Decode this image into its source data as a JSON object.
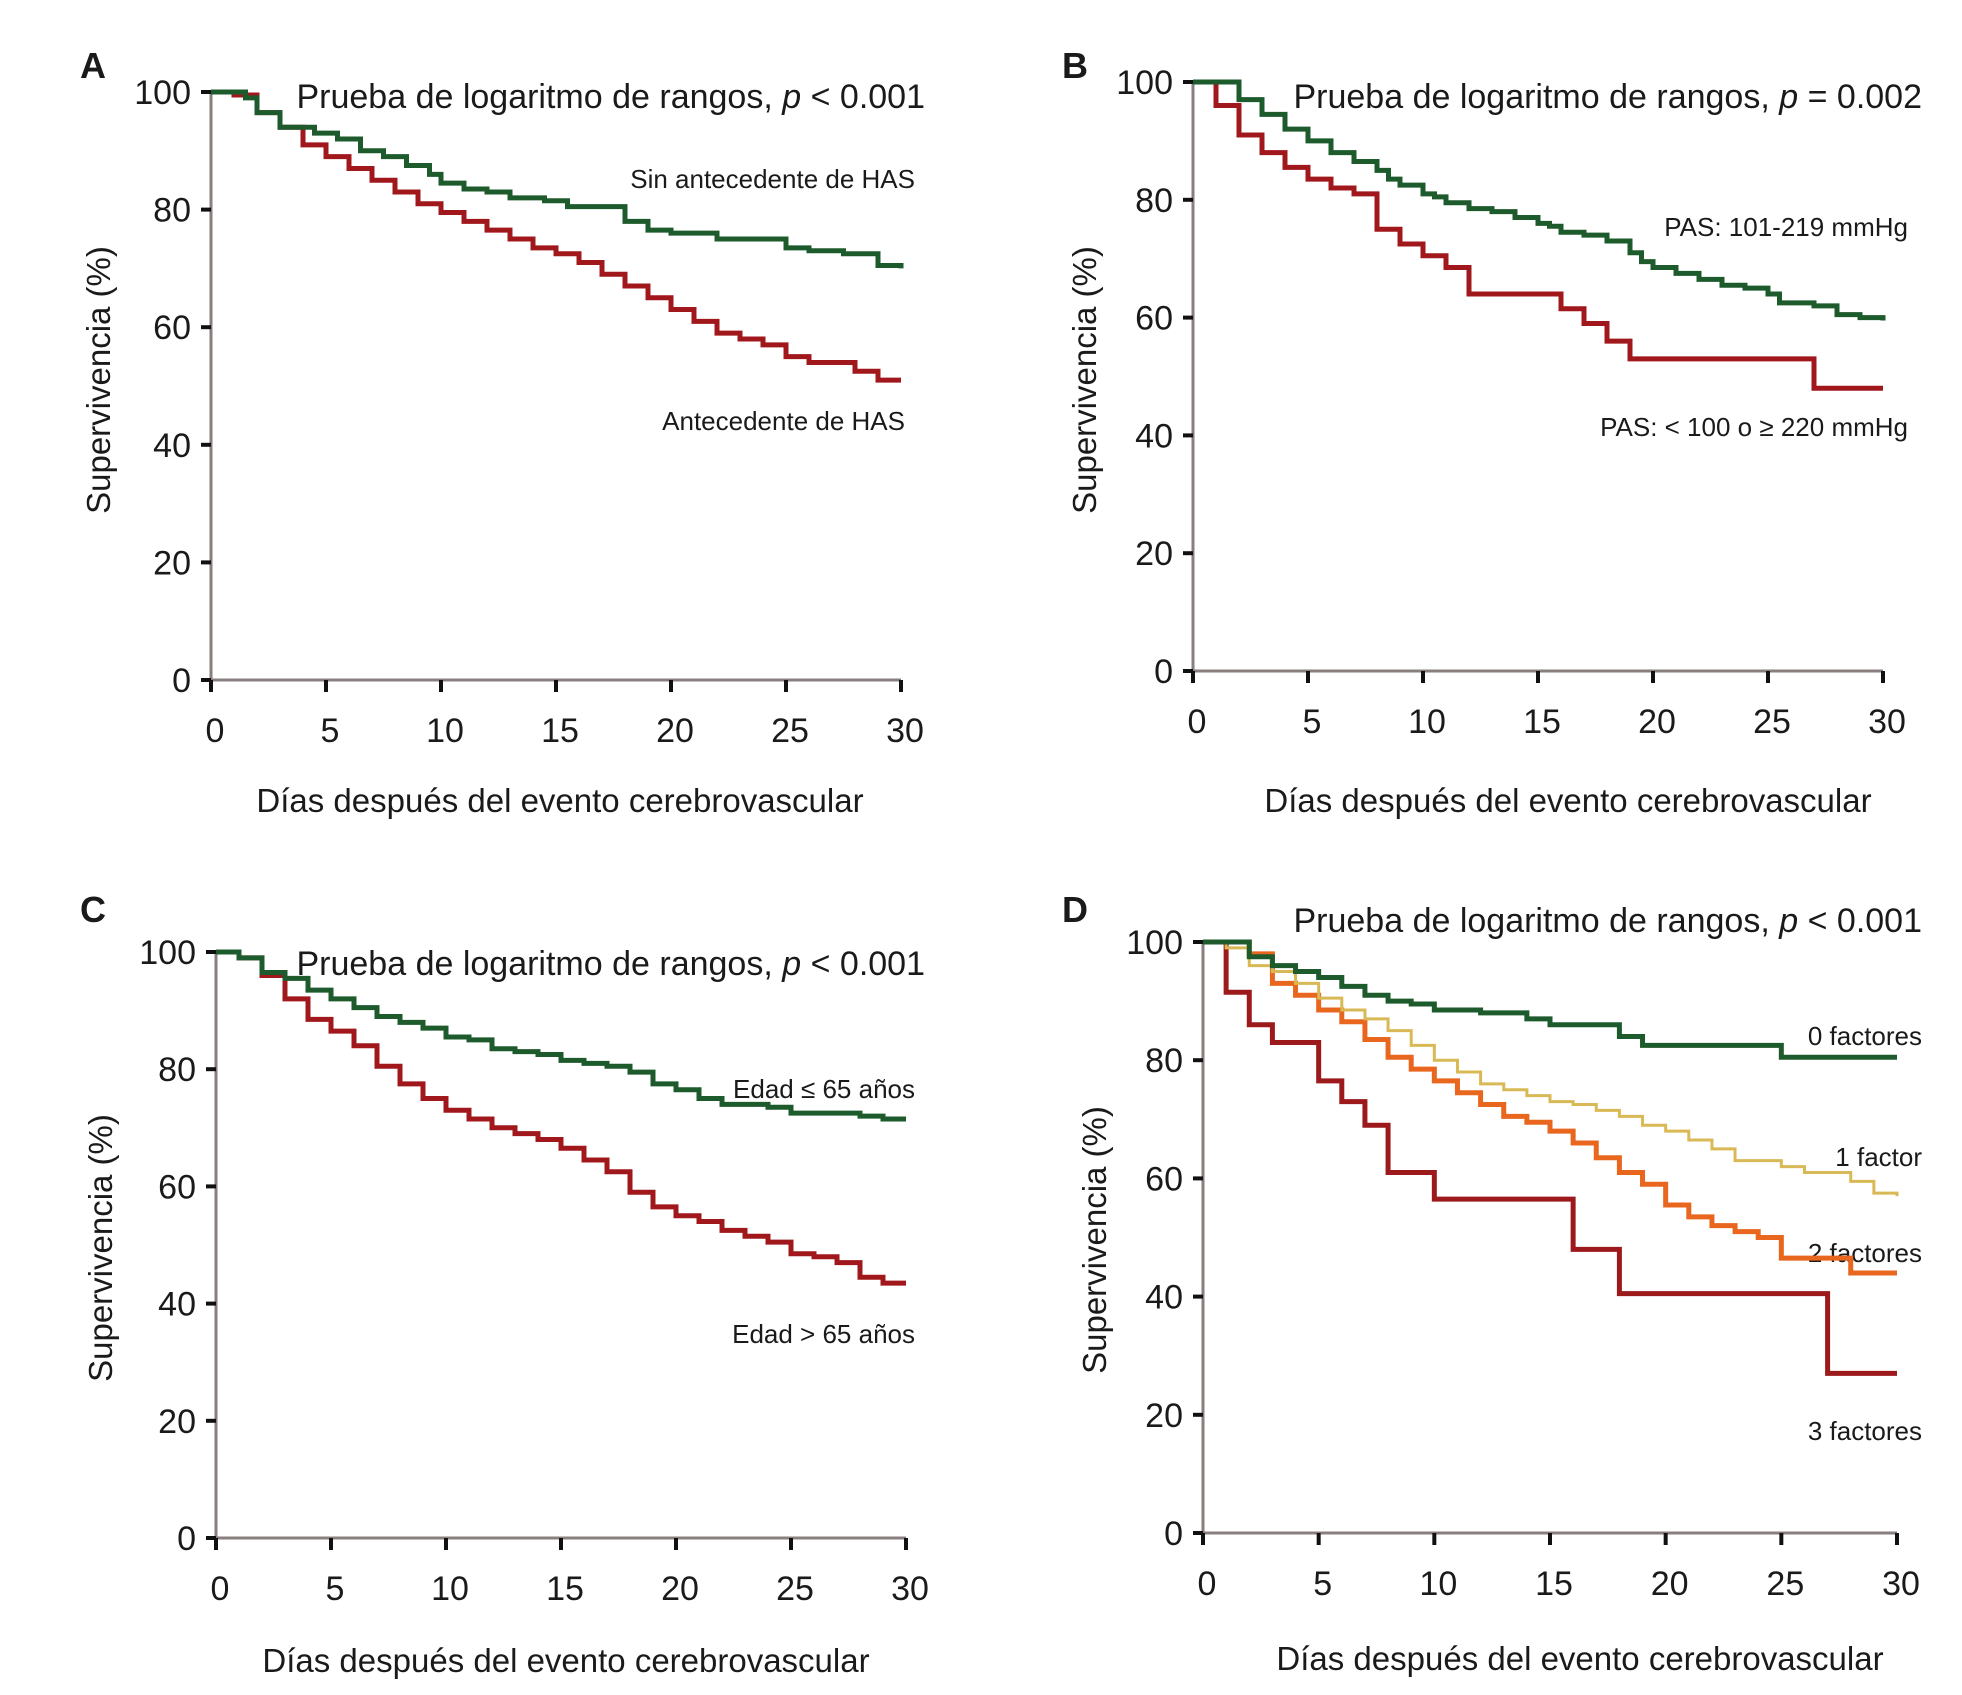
{
  "chart_data": [
    {
      "panel": "A",
      "type": "line",
      "step": true,
      "title": "Prueba de logaritmo de rangos, p < 0.001",
      "title_parts": {
        "prefix": "Prueba de logaritmo de rangos, ",
        "p": "p",
        "suffix": " < 0.001"
      },
      "xlabel": "Días después del evento cerebrovascular",
      "ylabel": "Supervivencia (%)",
      "xlim": [
        0,
        30
      ],
      "ylim": [
        0,
        100
      ],
      "xticks": [
        0,
        5,
        10,
        15,
        20,
        25,
        30
      ],
      "yticks": [
        0,
        20,
        40,
        60,
        80,
        100
      ],
      "grid": false,
      "series": [
        {
          "name": "Sin antecedente de HAS",
          "color": "#1e5b2c",
          "x": [
            0,
            1.5,
            2,
            3,
            4.5,
            5.5,
            6.5,
            7.5,
            8.5,
            9.5,
            10,
            11,
            12,
            13,
            14.5,
            15.5,
            18,
            19,
            20,
            22,
            25,
            26,
            27.5,
            29,
            30
          ],
          "y": [
            100,
            99,
            96.5,
            94,
            93,
            92,
            90,
            89,
            87.5,
            86,
            84.5,
            83.5,
            83,
            82,
            81.5,
            80.5,
            78,
            76.5,
            76,
            75,
            73.5,
            73,
            72.5,
            70.5,
            70
          ]
        },
        {
          "name": "Antecedente de HAS",
          "color": "#a0181c",
          "x": [
            0,
            1,
            2,
            3,
            4,
            5,
            6,
            7,
            8,
            9,
            10,
            11,
            12,
            13,
            14,
            15,
            16,
            17,
            18,
            19,
            20,
            21,
            22,
            23,
            24,
            25,
            26,
            27,
            28,
            29,
            30
          ],
          "y": [
            100,
            99.5,
            96.5,
            94,
            91,
            89,
            87,
            85,
            83,
            81,
            79.5,
            78,
            76.5,
            75,
            73.5,
            72.5,
            71,
            69,
            67,
            65,
            63,
            61,
            59,
            58,
            57,
            55,
            54,
            54,
            52.5,
            51,
            51
          ]
        }
      ]
    },
    {
      "panel": "B",
      "type": "line",
      "step": true,
      "title": "Prueba de logaritmo de rangos, p = 0.002",
      "title_parts": {
        "prefix": "Prueba de logaritmo de rangos, ",
        "p": "p",
        "suffix": " = 0.002"
      },
      "xlabel": "Días después del evento cerebrovascular",
      "ylabel": "Supervivencia (%)",
      "xlim": [
        0,
        30
      ],
      "ylim": [
        0,
        100
      ],
      "xticks": [
        0,
        5,
        10,
        15,
        20,
        25,
        30
      ],
      "yticks": [
        0,
        20,
        40,
        60,
        80,
        100
      ],
      "grid": false,
      "series": [
        {
          "name": "PAS: 101-219 mmHg",
          "color": "#1e5b2c",
          "x": [
            0,
            2,
            3,
            4,
            5,
            6,
            7,
            8,
            8.5,
            9,
            10,
            10.5,
            11,
            12,
            13,
            14,
            15,
            15.5,
            16,
            17,
            18,
            19,
            19.5,
            20,
            21,
            22,
            23,
            24,
            25,
            25.5,
            27,
            28,
            29,
            30
          ],
          "y": [
            100,
            97,
            94.5,
            92,
            90,
            88,
            86.5,
            85,
            83.5,
            82.5,
            81,
            80.5,
            79.5,
            78.5,
            78,
            77,
            76,
            75.5,
            74.5,
            74,
            73,
            71,
            69.5,
            68.5,
            67.5,
            66.5,
            65.5,
            65,
            64,
            62.5,
            62,
            60.5,
            60,
            59.5
          ]
        },
        {
          "name": "PAS: < 100 o ≥ 220 mmHg",
          "color": "#a0181c",
          "x": [
            0,
            1,
            2,
            3,
            4,
            5,
            6,
            7,
            8,
            9,
            10,
            11,
            12,
            16,
            17,
            18,
            19,
            27,
            30
          ],
          "y": [
            100,
            96,
            91,
            88,
            85.5,
            83.5,
            82,
            81,
            75,
            72.5,
            70.5,
            68.5,
            64,
            61.5,
            59,
            56,
            53,
            48,
            48
          ]
        }
      ]
    },
    {
      "panel": "C",
      "type": "line",
      "step": true,
      "title": "Prueba de logaritmo de rangos, p < 0.001",
      "title_parts": {
        "prefix": "Prueba de logaritmo de rangos, ",
        "p": "p",
        "suffix": " < 0.001"
      },
      "xlabel": "Días después del evento cerebrovascular",
      "ylabel": "Supervivencia (%)",
      "xlim": [
        0,
        30
      ],
      "ylim": [
        0,
        100
      ],
      "xticks": [
        0,
        5,
        10,
        15,
        20,
        25,
        30
      ],
      "yticks": [
        0,
        20,
        40,
        60,
        80,
        100
      ],
      "grid": false,
      "series": [
        {
          "name": "Edad ≤ 65 años",
          "color": "#1e5b2c",
          "x": [
            0,
            1,
            2,
            3,
            4,
            5,
            6,
            7,
            8,
            9,
            10,
            11,
            12,
            13,
            14,
            15,
            16,
            17,
            18,
            19,
            20,
            21,
            22,
            24,
            25,
            28,
            29,
            30
          ],
          "y": [
            100,
            99,
            96.5,
            95.5,
            93.5,
            92,
            90.5,
            89,
            88,
            87,
            85.5,
            85,
            83.5,
            83,
            82.5,
            81.5,
            81,
            80.5,
            79.5,
            77.5,
            76.5,
            75,
            74,
            73.5,
            72.5,
            72,
            71.5,
            71.5
          ]
        },
        {
          "name": "Edad > 65 años",
          "color": "#a0181c",
          "x": [
            0,
            1,
            2,
            3,
            4,
            5,
            6,
            7,
            8,
            9,
            10,
            11,
            12,
            13,
            14,
            15,
            16,
            17,
            18,
            19,
            20,
            21,
            22,
            23,
            24,
            25,
            26,
            27,
            28,
            29,
            30
          ],
          "y": [
            100,
            99,
            96,
            92,
            88.5,
            86.5,
            84,
            80.5,
            77.5,
            75,
            73,
            71.5,
            70,
            69,
            68,
            66.5,
            64.5,
            62.5,
            59,
            56.5,
            55,
            54,
            52.5,
            51.5,
            50.5,
            48.5,
            48,
            47,
            44.5,
            43.5,
            43.5
          ]
        }
      ]
    },
    {
      "panel": "D",
      "type": "line",
      "step": true,
      "title": "Prueba de logaritmo de rangos, p < 0.001",
      "title_parts": {
        "prefix": "Prueba de logaritmo de rangos, ",
        "p": "p",
        "suffix": " < 0.001"
      },
      "xlabel": "Días después del evento cerebrovascular",
      "ylabel": "Supervivencia (%)",
      "xlim": [
        0,
        30
      ],
      "ylim": [
        0,
        100
      ],
      "xticks": [
        0,
        5,
        10,
        15,
        20,
        25,
        30
      ],
      "yticks": [
        0,
        20,
        40,
        60,
        80,
        100
      ],
      "grid": false,
      "series": [
        {
          "name": "0 factores",
          "color": "#1e5b2c",
          "x": [
            0,
            2,
            3,
            4,
            5,
            6,
            7,
            8,
            9,
            10,
            12,
            14,
            15,
            18,
            19,
            25,
            30
          ],
          "y": [
            100,
            97.5,
            96,
            95,
            94,
            92.5,
            91,
            90,
            89.5,
            88.5,
            88,
            87,
            86,
            84,
            82.5,
            80.5,
            80.5
          ]
        },
        {
          "name": "1 factor",
          "color": "#d9b955",
          "x": [
            0,
            1,
            2,
            3,
            4,
            5,
            6,
            7,
            8,
            9,
            10,
            11,
            12,
            13,
            14,
            15,
            16,
            17,
            18,
            19,
            20,
            21,
            22,
            23,
            25,
            26,
            28,
            29,
            30
          ],
          "y": [
            100,
            99,
            96,
            95,
            93,
            90.5,
            88.5,
            87,
            85,
            82.5,
            80,
            78,
            76,
            75,
            74,
            73,
            72.5,
            71.5,
            70.5,
            69,
            68,
            66.5,
            65,
            63,
            62,
            61,
            59.5,
            57.5,
            57
          ]
        },
        {
          "name": "2 factores",
          "color": "#e8661e",
          "x": [
            0,
            2,
            3,
            4,
            5,
            6,
            7,
            8,
            9,
            10,
            11,
            12,
            13,
            14,
            15,
            16,
            17,
            18,
            19,
            20,
            21,
            22,
            23,
            24,
            25,
            28,
            30
          ],
          "y": [
            100,
            98,
            93,
            91,
            88.5,
            86.5,
            83.5,
            80.5,
            78.5,
            76.5,
            74.5,
            72.5,
            70.5,
            69.5,
            68,
            66,
            63.5,
            61,
            59,
            55.5,
            53.5,
            52,
            51,
            50,
            46.5,
            44,
            44
          ]
        },
        {
          "name": "3 factores",
          "color": "#9c1a1c",
          "x": [
            0,
            1,
            2,
            3,
            5,
            6,
            7,
            8,
            10,
            16,
            18,
            27,
            30
          ],
          "y": [
            100,
            91.5,
            86,
            83,
            76.5,
            73,
            69,
            61,
            56.5,
            48,
            40.5,
            27,
            27
          ]
        }
      ]
    }
  ]
}
